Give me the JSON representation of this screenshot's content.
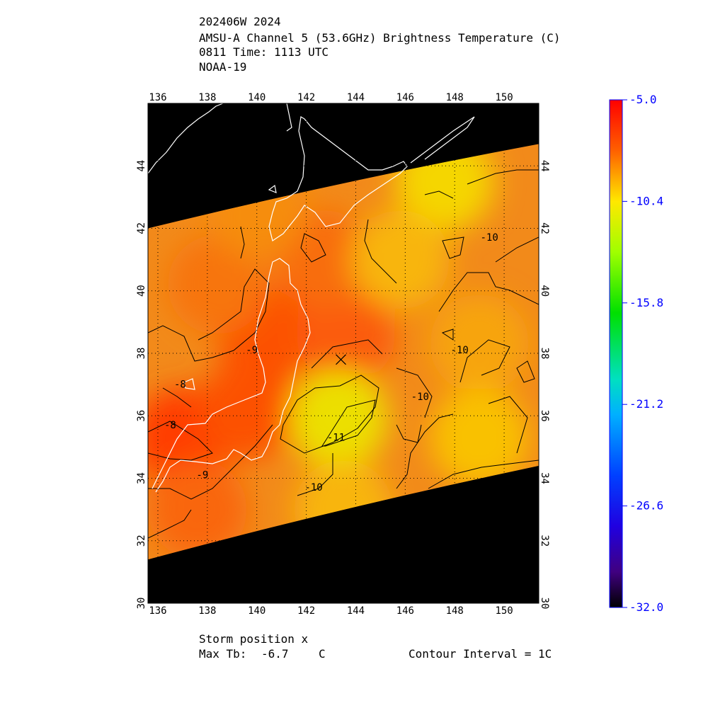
{
  "header": {
    "line1": "202406W 2024",
    "line2": "AMSU-A Channel 5 (53.6GHz) Brightness Temperature (C)",
    "line3": "0811 Time: 1113 UTC",
    "line4": "NOAA-19"
  },
  "footer": {
    "storm_label": "Storm position x",
    "max_tb_label": "Max Tb:",
    "max_tb_value": "-6.7",
    "max_tb_unit": "C",
    "contour_label": "Contour Interval = 1C"
  },
  "colors": {
    "background": "#ffffff",
    "map_mask": "#000000",
    "grid": "#000000",
    "coastline": "#ffffff",
    "contour": "#000000",
    "colorbar_labels": "#0000ff"
  },
  "chart_data": {
    "type": "heatmap",
    "title": "AMSU-A Channel 5 (53.6GHz) Brightness Temperature (C)",
    "xlim": [
      135.6,
      151.4
    ],
    "ylim": [
      30,
      46
    ],
    "x_ticks": [
      136,
      138,
      140,
      142,
      144,
      146,
      148,
      150
    ],
    "y_ticks": [
      30,
      32,
      34,
      36,
      38,
      40,
      42,
      44
    ],
    "grid": true,
    "storm_position": {
      "lon": 143.4,
      "lat": 37.8,
      "marker": "x"
    },
    "swath": {
      "north_edge": [
        [
          135.6,
          42.0
        ],
        [
          151.4,
          44.7
        ]
      ],
      "south_edge": [
        [
          135.6,
          31.4
        ],
        [
          151.4,
          34.4
        ]
      ]
    },
    "colorbar": {
      "min": -32.0,
      "max": -5.0,
      "tick_labels": [
        "-5.0",
        "-10.4",
        "-15.8",
        "-21.2",
        "-26.6",
        "-32.0"
      ],
      "tick_values": [
        -5.0,
        -10.4,
        -15.8,
        -21.2,
        -26.6,
        -32.0
      ]
    },
    "contour_labels": [
      {
        "text": "-8",
        "lon": 136.5,
        "lat": 35.6
      },
      {
        "text": "-8",
        "lon": 136.9,
        "lat": 36.9
      },
      {
        "text": "-9",
        "lon": 139.8,
        "lat": 38.0
      },
      {
        "text": "-9",
        "lon": 137.8,
        "lat": 34.0
      },
      {
        "text": "-10",
        "lon": 142.3,
        "lat": 33.6
      },
      {
        "text": "-10",
        "lon": 146.6,
        "lat": 36.5
      },
      {
        "text": "-10",
        "lon": 148.2,
        "lat": 38.0
      },
      {
        "text": "-10",
        "lon": 149.4,
        "lat": 41.6
      },
      {
        "text": "-11",
        "lon": 143.2,
        "lat": 35.2
      }
    ],
    "field_points": [
      {
        "lon": 137.0,
        "lat": 35.3,
        "value": -7.0
      },
      {
        "lon": 139.6,
        "lat": 36.2,
        "value": -7.6
      },
      {
        "lon": 140.4,
        "lat": 38.6,
        "value": -7.6
      },
      {
        "lon": 143.6,
        "lat": 38.6,
        "value": -7.9
      },
      {
        "lon": 142.7,
        "lat": 41.0,
        "value": -8.4
      },
      {
        "lon": 138.4,
        "lat": 40.2,
        "value": -8.6
      },
      {
        "lon": 137.6,
        "lat": 33.0,
        "value": -8.2
      },
      {
        "lon": 143.3,
        "lat": 35.9,
        "value": -11.0
      },
      {
        "lon": 147.6,
        "lat": 43.5,
        "value": -10.6
      },
      {
        "lon": 145.8,
        "lat": 41.0,
        "value": -9.9
      },
      {
        "lon": 149.0,
        "lat": 38.3,
        "value": -9.6
      },
      {
        "lon": 149.0,
        "lat": 35.3,
        "value": -10.1
      },
      {
        "lon": 143.5,
        "lat": 33.0,
        "value": -9.9
      },
      {
        "lon": 140.0,
        "lat": 42.6,
        "value": -9.2
      }
    ]
  }
}
